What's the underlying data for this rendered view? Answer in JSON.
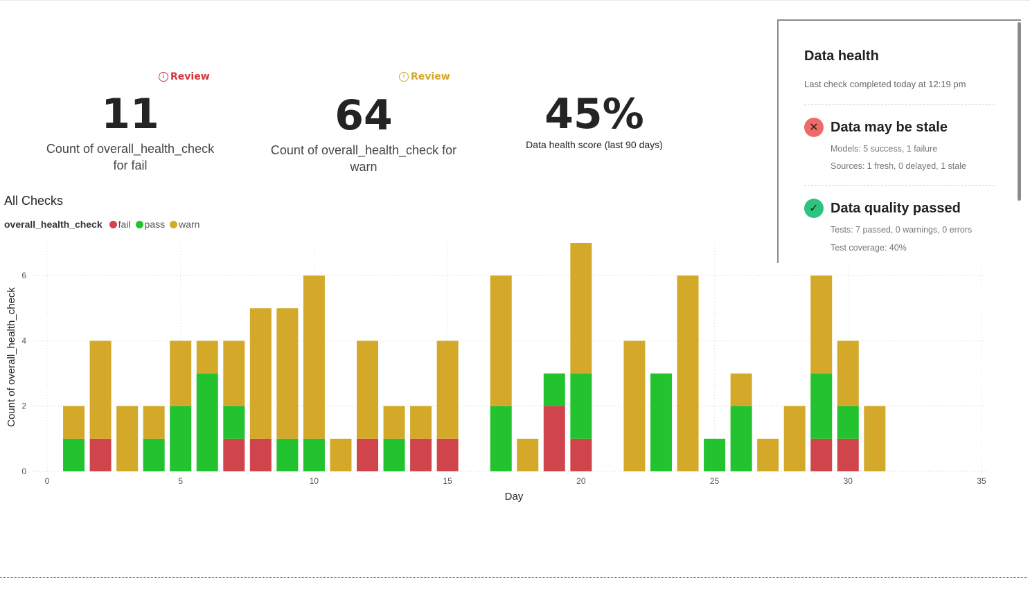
{
  "kpis": [
    {
      "review_label": "Review",
      "review_color": "#d13438",
      "value": "11",
      "caption": "Count of overall_health_check for fail"
    },
    {
      "review_label": "Review",
      "review_color": "#d4a62a",
      "value": "64",
      "caption": "Count of overall_health_check for warn"
    },
    {
      "value": "45%",
      "caption": "Data health score (last 90 days)"
    }
  ],
  "health_panel": {
    "title": "Data health",
    "subtitle": "Last check completed today at 12:19 pm",
    "sections": [
      {
        "icon": "x-circle-icon",
        "color": "#ef6b66",
        "title": "Data may be stale",
        "lines": [
          "Models: 5 success, 1 failure",
          "Sources: 1 fresh, 0 delayed, 1 stale"
        ]
      },
      {
        "icon": "check-circle-icon",
        "color": "#2ec27e",
        "title": "Data quality passed",
        "lines": [
          "Tests: 7 passed, 0 warnings, 0 errors",
          "Test coverage: 40%"
        ]
      }
    ]
  },
  "chart_data": {
    "type": "bar",
    "stacked": true,
    "title": "All Checks",
    "legend_title": "overall_health_check",
    "legend_position": "top-left",
    "xlabel": "Day",
    "ylabel": "Count of overall_health_check",
    "xlim": [
      0,
      35
    ],
    "ylim": [
      0,
      7
    ],
    "xticks": [
      0,
      5,
      10,
      15,
      20,
      25,
      30,
      35
    ],
    "yticks": [
      0,
      2,
      4,
      6
    ],
    "grid": true,
    "x": [
      1,
      2,
      3,
      4,
      5,
      6,
      7,
      8,
      9,
      10,
      11,
      12,
      13,
      14,
      15,
      16,
      17,
      18,
      19,
      20,
      21,
      22,
      23,
      24,
      25,
      26,
      27,
      28,
      29,
      30,
      31
    ],
    "series": [
      {
        "name": "fail",
        "color": "#d0454c",
        "values": [
          0,
          1,
          0,
          0,
          0,
          0,
          1,
          1,
          0,
          0,
          0,
          1,
          0,
          1,
          1,
          0,
          0,
          0,
          2,
          1,
          0,
          0,
          0,
          0,
          0,
          0,
          0,
          0,
          1,
          1,
          0
        ]
      },
      {
        "name": "pass",
        "color": "#22c32e",
        "values": [
          1,
          0,
          0,
          1,
          2,
          3,
          1,
          0,
          1,
          1,
          0,
          0,
          1,
          0,
          0,
          0,
          2,
          0,
          1,
          2,
          0,
          0,
          3,
          0,
          1,
          2,
          0,
          0,
          2,
          1,
          0
        ]
      },
      {
        "name": "warn",
        "color": "#d4a92a",
        "values": [
          1,
          3,
          2,
          1,
          2,
          1,
          2,
          4,
          4,
          5,
          1,
          3,
          1,
          1,
          3,
          0,
          4,
          1,
          0,
          4,
          0,
          4,
          0,
          6,
          0,
          1,
          1,
          2,
          3,
          2,
          2
        ]
      }
    ]
  }
}
